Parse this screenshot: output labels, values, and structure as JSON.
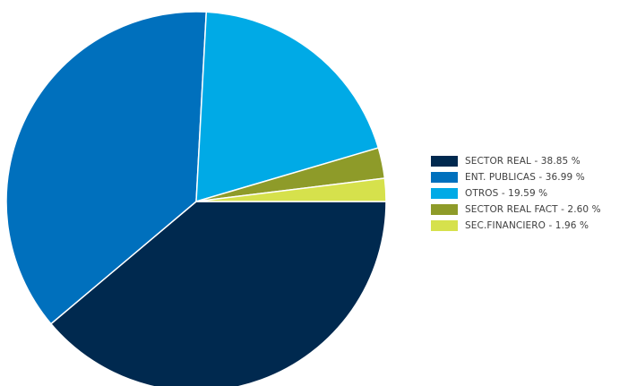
{
  "chart_data": {
    "type": "pie",
    "title": "",
    "start": "3 o'clock",
    "direction": "clockwise",
    "legend_position": "right",
    "slices": [
      {
        "label": "SECTOR REAL - 38.85 %",
        "category": "SECTOR REAL",
        "value": 38.85,
        "color": "#00294f"
      },
      {
        "label": "ENT. PUBLICAS - 36.99 %",
        "category": "ENT. PUBLICAS",
        "value": 36.99,
        "color": "#0070bd"
      },
      {
        "label": "OTROS - 19.59 %",
        "category": "OTROS",
        "value": 19.59,
        "color": "#00aae6"
      },
      {
        "label": "SECTOR REAL FACT - 2.60 %",
        "category": "SECTOR REAL FACT",
        "value": 2.6,
        "color": "#8e9b29"
      },
      {
        "label": "SEC.FINANCIERO - 1.96 %",
        "category": "SEC.FINANCIERO",
        "value": 1.96,
        "color": "#d6e14c"
      }
    ]
  }
}
